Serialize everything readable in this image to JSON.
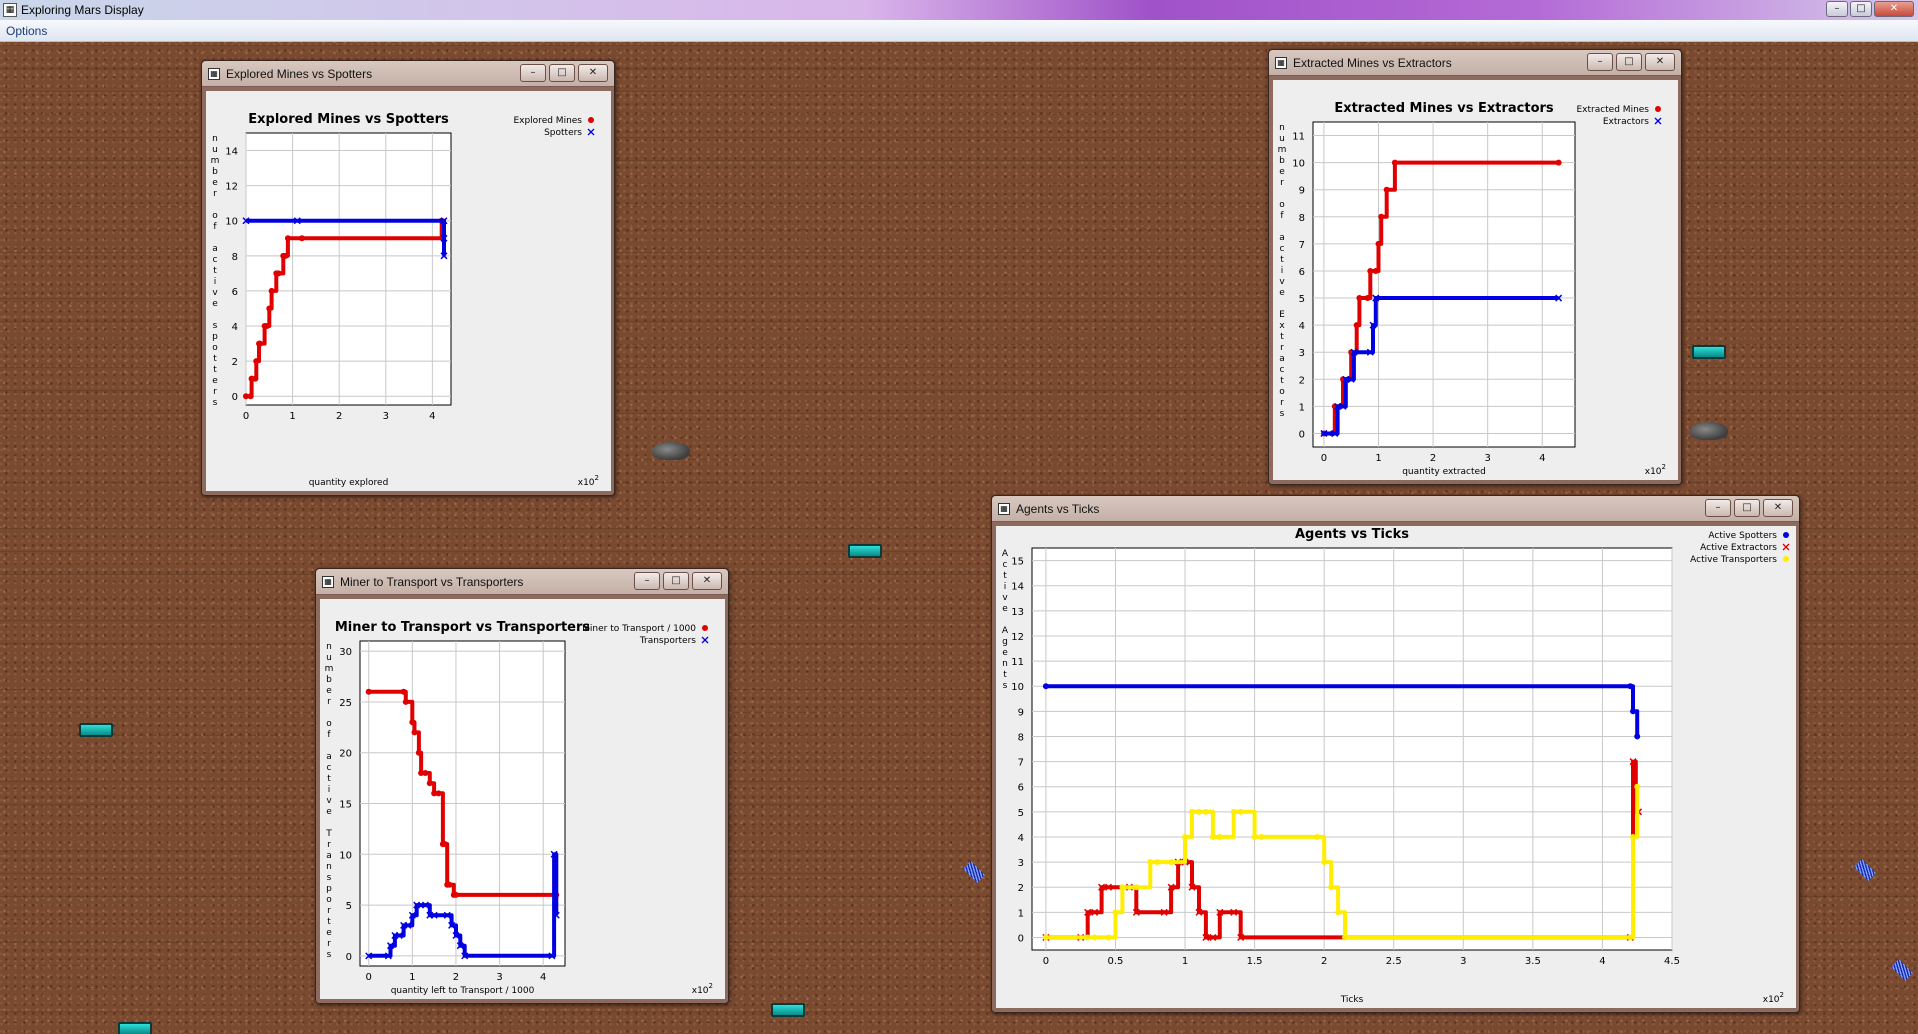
{
  "window": {
    "title": "Exploring Mars Display"
  },
  "menu": {
    "options_label": "Options"
  },
  "window_controls": {
    "minimize": "–",
    "maximize": "□",
    "close": "✕"
  },
  "frame_buttons": {
    "minimize": "–",
    "maximize": "□",
    "close": "✕"
  },
  "icons": {
    "app": "chart-icon"
  },
  "charts": [
    {
      "frame_title": "Explored Mines vs Spotters",
      "exponent_label": "x10",
      "exponent_sup": "2",
      "chart_data": {
        "type": "line",
        "title": "Explored Mines vs Spotters",
        "xlabel": "quantity explored",
        "ylabel": "number of active spotters",
        "xlim": [
          0,
          4.4
        ],
        "ylim": [
          -0.5,
          15
        ],
        "xticks": [
          0,
          1,
          2,
          3,
          4
        ],
        "yticks": [
          0,
          2,
          4,
          6,
          8,
          10,
          12,
          14
        ],
        "grid": true,
        "legend_position": "top-right",
        "series": [
          {
            "name": "Explored Mines",
            "color": "#e00000",
            "marker": "dot",
            "x": [
              0,
              0.1,
              0.12,
              0.2,
              0.22,
              0.28,
              0.3,
              0.4,
              0.45,
              0.5,
              0.55,
              0.65,
              0.7,
              0.8,
              0.85,
              0.9,
              1.2,
              4.2
            ],
            "y": [
              0,
              0,
              1,
              1,
              2,
              3,
              3,
              4,
              4,
              5,
              6,
              7,
              7,
              8,
              8,
              9,
              9,
              10
            ]
          },
          {
            "name": "Spotters",
            "color": "#0000e0",
            "marker": "x",
            "x": [
              0,
              1.1,
              4.25,
              4.25,
              4.25
            ],
            "y": [
              10,
              10,
              10,
              9,
              8
            ]
          }
        ]
      }
    },
    {
      "frame_title": "Extracted Mines vs Extractors",
      "exponent_label": "x10",
      "exponent_sup": "2",
      "chart_data": {
        "type": "line",
        "title": "Extracted Mines vs Extractors",
        "xlabel": "quantity extracted",
        "ylabel": "number of active Extractors",
        "xlim": [
          -0.2,
          4.6
        ],
        "ylim": [
          -0.5,
          11.5
        ],
        "xticks": [
          0,
          1,
          2,
          3,
          4
        ],
        "yticks": [
          0,
          1,
          2,
          3,
          4,
          5,
          6,
          7,
          8,
          9,
          10,
          11
        ],
        "grid": true,
        "legend_position": "top-right",
        "series": [
          {
            "name": "Extracted Mines",
            "color": "#e00000",
            "marker": "dot",
            "x": [
              0,
              0.15,
              0.2,
              0.3,
              0.35,
              0.45,
              0.5,
              0.6,
              0.65,
              0.8,
              0.85,
              0.95,
              1.0,
              1.05,
              1.15,
              1.3,
              4.3
            ],
            "y": [
              0,
              0,
              1,
              1,
              2,
              2,
              3,
              4,
              5,
              5,
              6,
              6,
              7,
              8,
              9,
              10,
              10
            ]
          },
          {
            "name": "Extractors",
            "color": "#0000e0",
            "marker": "x",
            "x": [
              0,
              0.2,
              0.25,
              0.35,
              0.4,
              0.5,
              0.55,
              0.85,
              0.9,
              0.95,
              4.3
            ],
            "y": [
              0,
              0,
              1,
              1,
              2,
              2,
              3,
              3,
              4,
              5,
              5
            ]
          }
        ]
      }
    },
    {
      "frame_title": "Miner to Transport vs Transporters",
      "exponent_label": "x10",
      "exponent_sup": "2",
      "chart_data": {
        "type": "line",
        "title": "Miner to Transport vs Transporters",
        "xlabel": "quantity left to Transport / 1000",
        "ylabel": "number of active Transporters",
        "xlim": [
          -0.2,
          4.5
        ],
        "ylim": [
          -1,
          31
        ],
        "xticks": [
          0,
          1,
          2,
          3,
          4
        ],
        "yticks": [
          0,
          5,
          10,
          15,
          20,
          25,
          30
        ],
        "grid": true,
        "legend_position": "top-right",
        "series": [
          {
            "name": "Miner to Transport / 1000",
            "color": "#e00000",
            "marker": "dot",
            "x": [
              0,
              0.8,
              0.85,
              1.0,
              1.05,
              1.15,
              1.2,
              1.3,
              1.4,
              1.5,
              1.6,
              1.7,
              1.75,
              1.8,
              1.85,
              1.95,
              2.0,
              4.3
            ],
            "y": [
              26,
              26,
              25,
              23,
              22,
              20,
              18,
              18,
              17,
              16,
              16,
              11,
              11,
              7,
              7,
              6,
              6,
              6
            ]
          },
          {
            "name": "Transporters",
            "color": "#0000e0",
            "marker": "x",
            "x": [
              0,
              0.45,
              0.5,
              0.6,
              0.7,
              0.8,
              0.9,
              1.0,
              1.1,
              1.3,
              1.4,
              1.5,
              1.8,
              1.9,
              2.0,
              2.1,
              2.2,
              4.2,
              4.25,
              4.3
            ],
            "y": [
              0,
              0,
              1,
              2,
              2,
              3,
              3,
              4,
              5,
              5,
              4,
              4,
              4,
              3,
              2,
              1,
              0,
              0,
              10,
              4
            ]
          }
        ]
      }
    },
    {
      "frame_title": "Agents vs Ticks",
      "exponent_label": "x10",
      "exponent_sup": "2",
      "chart_data": {
        "type": "line",
        "title": "Agents vs Ticks",
        "xlabel": "Ticks",
        "ylabel": "Active Agents",
        "xlim": [
          -0.1,
          4.5
        ],
        "ylim": [
          -0.5,
          15.5
        ],
        "xticks": [
          0.0,
          0.5,
          1.0,
          1.5,
          2.0,
          2.5,
          3.0,
          3.5,
          4.0,
          4.5
        ],
        "yticks": [
          0,
          1,
          2,
          3,
          4,
          5,
          6,
          7,
          8,
          9,
          10,
          11,
          12,
          13,
          14,
          15
        ],
        "grid": true,
        "legend_position": "top-right",
        "series": [
          {
            "name": "Active Spotters",
            "color": "#0000e0",
            "marker": "dot",
            "x": [
              0,
              4.2,
              4.22,
              4.25
            ],
            "y": [
              10,
              10,
              9,
              8
            ]
          },
          {
            "name": "Active Extractors",
            "color": "#e00000",
            "marker": "x",
            "x": [
              0,
              0.25,
              0.3,
              0.35,
              0.4,
              0.45,
              0.6,
              0.65,
              0.85,
              0.9,
              0.95,
              1.0,
              1.05,
              1.1,
              1.15,
              1.2,
              1.25,
              1.35,
              1.4,
              4.2,
              4.22,
              4.24,
              4.26
            ],
            "y": [
              0,
              0,
              1,
              1,
              2,
              2,
              2,
              1,
              1,
              2,
              3,
              3,
              2,
              1,
              0,
              0,
              1,
              1,
              0,
              0,
              7,
              5,
              5
            ]
          },
          {
            "name": "Active Transporters",
            "color": "#ffee00",
            "marker": "dot",
            "x": [
              0,
              0.3,
              0.35,
              0.45,
              0.5,
              0.55,
              0.65,
              0.75,
              0.8,
              0.9,
              1.0,
              1.05,
              1.1,
              1.15,
              1.2,
              1.25,
              1.35,
              1.4,
              1.5,
              1.55,
              1.95,
              2.0,
              2.05,
              2.1,
              2.15,
              4.2,
              4.22,
              4.25
            ],
            "y": [
              0,
              0,
              0,
              0,
              1,
              2,
              2,
              3,
              3,
              3,
              4,
              5,
              5,
              5,
              4,
              4,
              5,
              5,
              4,
              4,
              4,
              3,
              2,
              1,
              0,
              0,
              4,
              6
            ]
          }
        ]
      }
    }
  ]
}
